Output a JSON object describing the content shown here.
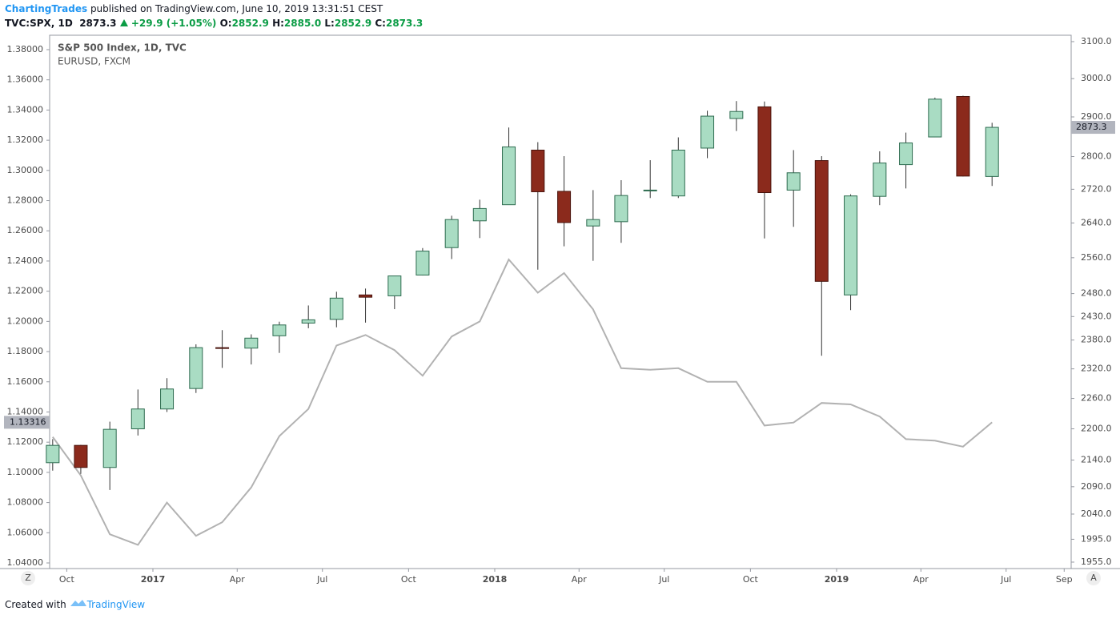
{
  "header": {
    "author": "ChartingTrades",
    "published": "published on TradingView.com, June 10, 2019 13:31:51 CEST",
    "symbol": "TVC:SPX, 1D",
    "last": "2873.3",
    "change": "+29.9 (+1.05%)",
    "open_label": "O:",
    "open": "2852.9",
    "high_label": "H:",
    "high": "2885.0",
    "low_label": "L:",
    "low": "2852.9",
    "close_label": "C:",
    "close": "2873.3"
  },
  "footer": {
    "created": "Created with",
    "brand": "TradingView"
  },
  "buttons": [
    "Z",
    "A"
  ],
  "chart_data": {
    "type": "candlestick",
    "x": [
      "2016-09",
      "2016-10",
      "2016-11",
      "2016-12",
      "2017-01",
      "2017-02",
      "2017-03",
      "2017-04",
      "2017-05",
      "2017-06",
      "2017-07",
      "2017-08",
      "2017-09",
      "2017-10",
      "2017-11",
      "2017-12",
      "2018-01",
      "2018-02",
      "2018-03",
      "2018-04",
      "2018-05",
      "2018-06",
      "2018-07",
      "2018-08",
      "2018-09",
      "2018-10",
      "2018-11",
      "2018-12",
      "2019-01",
      "2019-02",
      "2019-03",
      "2019-04",
      "2019-05",
      "2019-06"
    ],
    "xticks": [
      {
        "value": "2016-10",
        "label": "Oct"
      },
      {
        "value": "2017-01",
        "label": "2017"
      },
      {
        "value": "2017-04",
        "label": "Apr"
      },
      {
        "value": "2017-07",
        "label": "Jul"
      },
      {
        "value": "2017-10",
        "label": "Oct"
      },
      {
        "value": "2018-01",
        "label": "2018"
      },
      {
        "value": "2018-04",
        "label": "Apr"
      },
      {
        "value": "2018-07",
        "label": "Jul"
      },
      {
        "value": "2018-10",
        "label": "Oct"
      },
      {
        "value": "2019-01",
        "label": "2019"
      },
      {
        "value": "2019-04",
        "label": "Apr"
      },
      {
        "value": "2019-07",
        "label": "Jul"
      },
      {
        "value": "2019-09",
        "label": "Sep"
      }
    ],
    "ylim": [
      1.03629,
      1.38955
    ],
    "yticks": [
      {
        "value": 1.04,
        "label": "1.04000"
      },
      {
        "value": 1.06,
        "label": "1.06000"
      },
      {
        "value": 1.08,
        "label": "1.08000"
      },
      {
        "value": 1.1,
        "label": "1.10000"
      },
      {
        "value": 1.12,
        "label": "1.12000"
      },
      {
        "value": 1.14,
        "label": "1.14000"
      },
      {
        "value": 1.16,
        "label": "1.16000"
      },
      {
        "value": 1.18,
        "label": "1.18000"
      },
      {
        "value": 1.2,
        "label": "1.20000"
      },
      {
        "value": 1.22,
        "label": "1.22000"
      },
      {
        "value": 1.24,
        "label": "1.24000"
      },
      {
        "value": 1.26,
        "label": "1.26000"
      },
      {
        "value": 1.28,
        "label": "1.28000"
      },
      {
        "value": 1.3,
        "label": "1.30000"
      },
      {
        "value": 1.32,
        "label": "1.32000"
      },
      {
        "value": 1.34,
        "label": "1.34000"
      },
      {
        "value": 1.36,
        "label": "1.36000"
      },
      {
        "value": 1.38,
        "label": "1.38000"
      }
    ],
    "y2lim": [
      1943.9,
      3117.6
    ],
    "y2log": true,
    "y2ticks": [
      {
        "value": 1955,
        "label": "1955.0"
      },
      {
        "value": 1995,
        "label": "1995.0"
      },
      {
        "value": 2040,
        "label": "2040.0"
      },
      {
        "value": 2090,
        "label": "2090.0"
      },
      {
        "value": 2140,
        "label": "2140.0"
      },
      {
        "value": 2200,
        "label": "2200.0"
      },
      {
        "value": 2260,
        "label": "2260.0"
      },
      {
        "value": 2320,
        "label": "2320.0"
      },
      {
        "value": 2380,
        "label": "2380.0"
      },
      {
        "value": 2430,
        "label": "2430.0"
      },
      {
        "value": 2480,
        "label": "2480.0"
      },
      {
        "value": 2560,
        "label": "2560.0"
      },
      {
        "value": 2640,
        "label": "2640.0"
      },
      {
        "value": 2720,
        "label": "2720.0"
      },
      {
        "value": 2800,
        "label": "2800.0"
      },
      {
        "value": 2900,
        "label": "2900.0"
      },
      {
        "value": 3000,
        "label": "3000.0"
      },
      {
        "value": 3100,
        "label": "3100.0"
      }
    ],
    "series": [
      {
        "name": "S&P 500 Index, 1D, TVC",
        "type": "candlestick",
        "axis": "y2",
        "up_color": "#a9dcc3",
        "down_color": "#8b2a1c",
        "price_label": "2873.3",
        "open": [
          2135,
          2168,
          2126,
          2200,
          2239,
          2280,
          2364,
          2363,
          2389,
          2416,
          2424,
          2477,
          2475,
          2521,
          2583,
          2645,
          2683,
          2816,
          2715,
          2633,
          2643,
          2718,
          2704,
          2821,
          2896,
          2926,
          2718,
          2790,
          2477,
          2703,
          2780,
          2849,
          2953,
          2751
        ],
        "high": [
          2180,
          2169,
          2214,
          2278,
          2301,
          2371,
          2401,
          2392,
          2419,
          2454,
          2484,
          2491,
          2519,
          2582,
          2657,
          2695,
          2873,
          2836,
          2801,
          2718,
          2742,
          2791,
          2848,
          2916,
          2941,
          2940,
          2816,
          2801,
          2708,
          2813,
          2860,
          2950,
          2955,
          2885
        ],
        "low": [
          2120,
          2114,
          2084,
          2187,
          2233,
          2271,
          2322,
          2329,
          2353,
          2405,
          2407,
          2417,
          2446,
          2520,
          2557,
          2605,
          2683,
          2533,
          2586,
          2553,
          2594,
          2699,
          2699,
          2796,
          2864,
          2604,
          2631,
          2347,
          2444,
          2682,
          2722,
          2848,
          2751,
          2728
        ],
        "close": [
          2168,
          2126,
          2199,
          2239,
          2279,
          2364,
          2363,
          2384,
          2412,
          2423,
          2470,
          2472,
          2519,
          2575,
          2648,
          2674,
          2824,
          2714,
          2641,
          2648,
          2705,
          2718,
          2816,
          2902,
          2914,
          2712,
          2760,
          2507,
          2704,
          2784,
          2834,
          2946,
          2752,
          2873.3
        ]
      },
      {
        "name": "EURUSD, FXCM",
        "type": "line",
        "axis": "y",
        "color": "#b2b2b2",
        "price_label": "1.13316",
        "values": [
          1.1235,
          1.098,
          1.059,
          1.052,
          1.08,
          1.058,
          1.067,
          1.09,
          1.124,
          1.142,
          1.184,
          1.191,
          1.181,
          1.164,
          1.19,
          1.2,
          1.241,
          1.219,
          1.232,
          1.208,
          1.169,
          1.168,
          1.169,
          1.16,
          1.16,
          1.131,
          1.133,
          1.146,
          1.145,
          1.137,
          1.122,
          1.121,
          1.117,
          1.13316
        ]
      }
    ]
  }
}
